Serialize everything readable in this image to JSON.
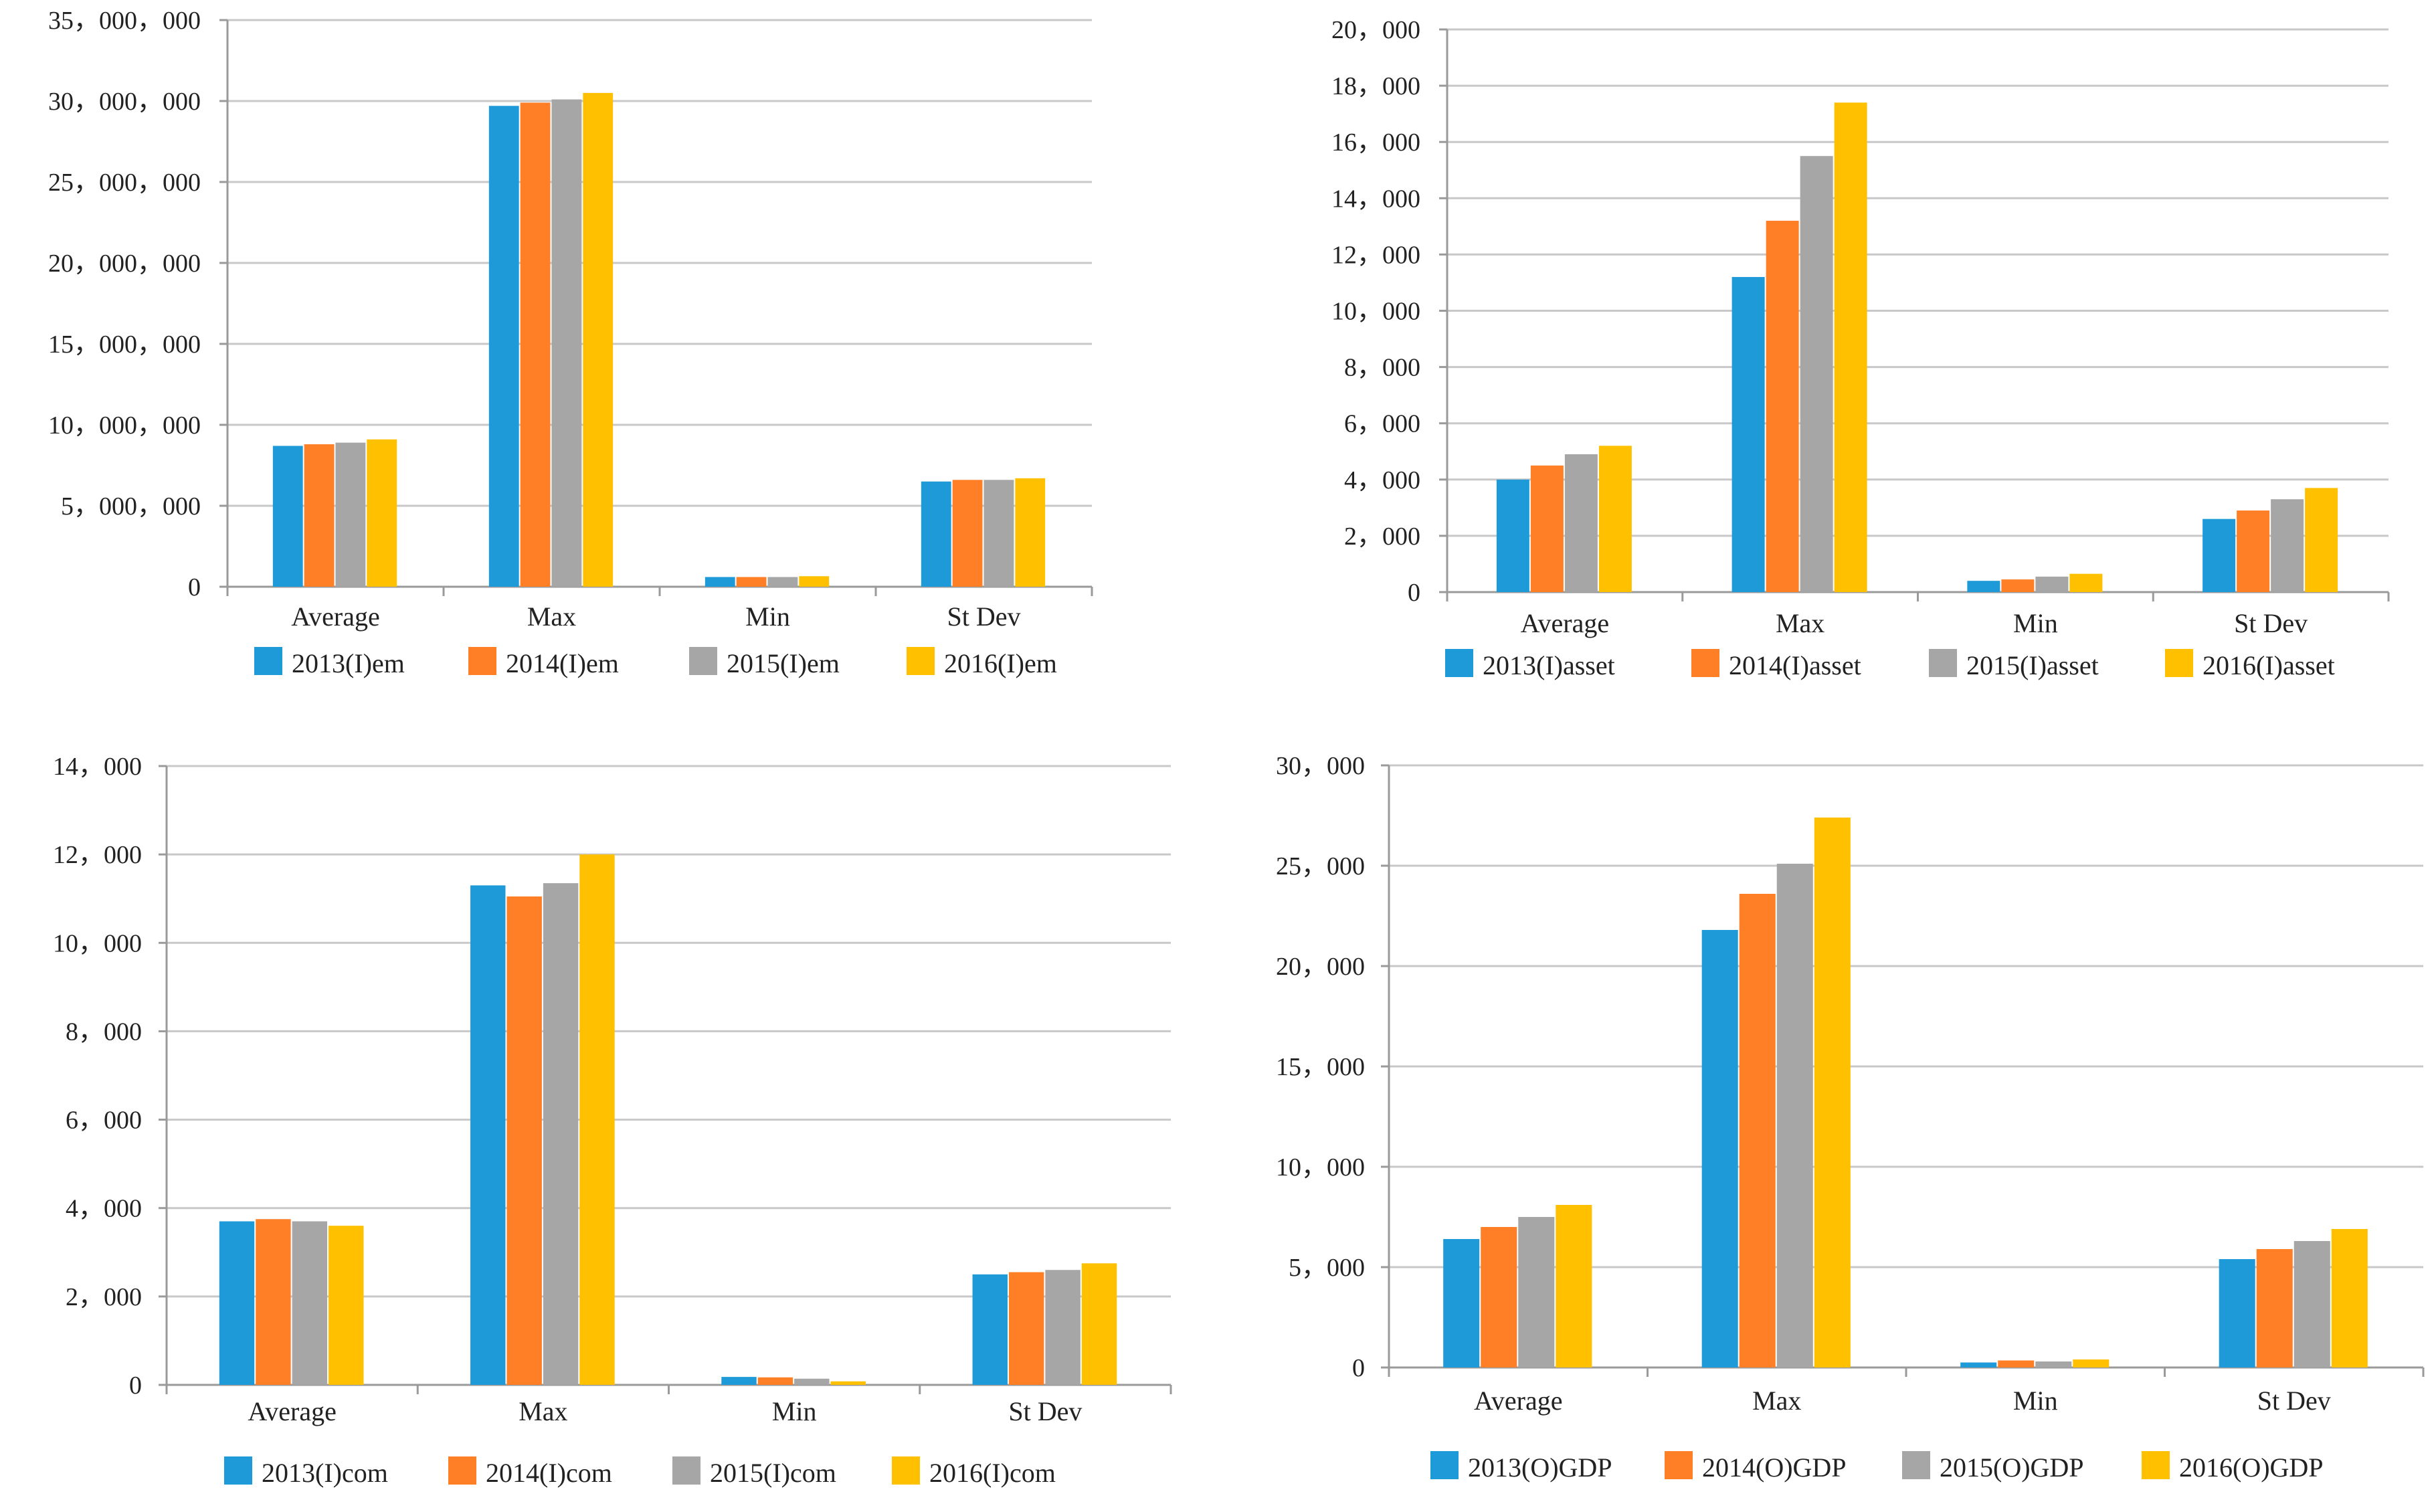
{
  "colors": [
    "#1f9ad9",
    "#ff7f27",
    "#a6a6a6",
    "#ffc000"
  ],
  "chart_data": [
    {
      "type": "bar",
      "categories": [
        "Average",
        "Max",
        "Min",
        "St Dev"
      ],
      "ylim": [
        0,
        35000000
      ],
      "yticks": [
        0,
        5000000,
        10000000,
        15000000,
        20000000,
        25000000,
        30000000,
        35000000
      ],
      "ytick_labels": [
        "0",
        "5，000，000",
        "10，000，000",
        "15，000，000",
        "20，000，000",
        "25，000，000",
        "30，000，000",
        "35，000，000"
      ],
      "series": [
        {
          "name": "2013(I)em",
          "values": [
            8700000,
            29700000,
            600000,
            6500000
          ]
        },
        {
          "name": "2014(I)em",
          "values": [
            8800000,
            29900000,
            600000,
            6600000
          ]
        },
        {
          "name": "2015(I)em",
          "values": [
            8900000,
            30100000,
            600000,
            6600000
          ]
        },
        {
          "name": "2016(I)em",
          "values": [
            9100000,
            30500000,
            650000,
            6700000
          ]
        }
      ]
    },
    {
      "type": "bar",
      "categories": [
        "Average",
        "Max",
        "Min",
        "St Dev"
      ],
      "ylim": [
        0,
        20000
      ],
      "yticks": [
        0,
        2000,
        4000,
        6000,
        8000,
        10000,
        12000,
        14000,
        16000,
        18000,
        20000
      ],
      "ytick_labels": [
        "0",
        "2，000",
        "4，000",
        "6，000",
        "8，000",
        "10，000",
        "12，000",
        "14，000",
        "16，000",
        "18，000",
        "20，000"
      ],
      "series": [
        {
          "name": "2013(I)asset",
          "values": [
            4000,
            11200,
            400,
            2600
          ]
        },
        {
          "name": "2014(I)asset",
          "values": [
            4500,
            13200,
            450,
            2900
          ]
        },
        {
          "name": "2015(I)asset",
          "values": [
            4900,
            15500,
            550,
            3300
          ]
        },
        {
          "name": "2016(I)asset",
          "values": [
            5200,
            17400,
            650,
            3700
          ]
        }
      ]
    },
    {
      "type": "bar",
      "categories": [
        "Average",
        "Max",
        "Min",
        "St Dev"
      ],
      "ylim": [
        0,
        14000
      ],
      "yticks": [
        0,
        2000,
        4000,
        6000,
        8000,
        10000,
        12000,
        14000
      ],
      "ytick_labels": [
        "0",
        "2，000",
        "4，000",
        "6，000",
        "8，000",
        "10，000",
        "12，000",
        "14，000"
      ],
      "series": [
        {
          "name": "2013(I)com",
          "values": [
            3700,
            11300,
            180,
            2500
          ]
        },
        {
          "name": "2014(I)com",
          "values": [
            3750,
            11050,
            170,
            2550
          ]
        },
        {
          "name": "2015(I)com",
          "values": [
            3700,
            11350,
            140,
            2600
          ]
        },
        {
          "name": "2016(I)com",
          "values": [
            3600,
            12000,
            80,
            2750
          ]
        }
      ]
    },
    {
      "type": "bar",
      "categories": [
        "Average",
        "Max",
        "Min",
        "St Dev"
      ],
      "ylim": [
        0,
        30000
      ],
      "yticks": [
        0,
        5000,
        10000,
        15000,
        20000,
        25000,
        30000
      ],
      "ytick_labels": [
        "0",
        "5，000",
        "10，000",
        "15，000",
        "20，000",
        "25，000",
        "30，000"
      ],
      "series": [
        {
          "name": "2013(O)GDP",
          "values": [
            6400,
            21800,
            250,
            5400
          ]
        },
        {
          "name": "2014(O)GDP",
          "values": [
            7000,
            23600,
            350,
            5900
          ]
        },
        {
          "name": "2015(O)GDP",
          "values": [
            7500,
            25100,
            300,
            6300
          ]
        },
        {
          "name": "2016(O)GDP",
          "values": [
            8100,
            27400,
            400,
            6900
          ]
        }
      ]
    }
  ]
}
